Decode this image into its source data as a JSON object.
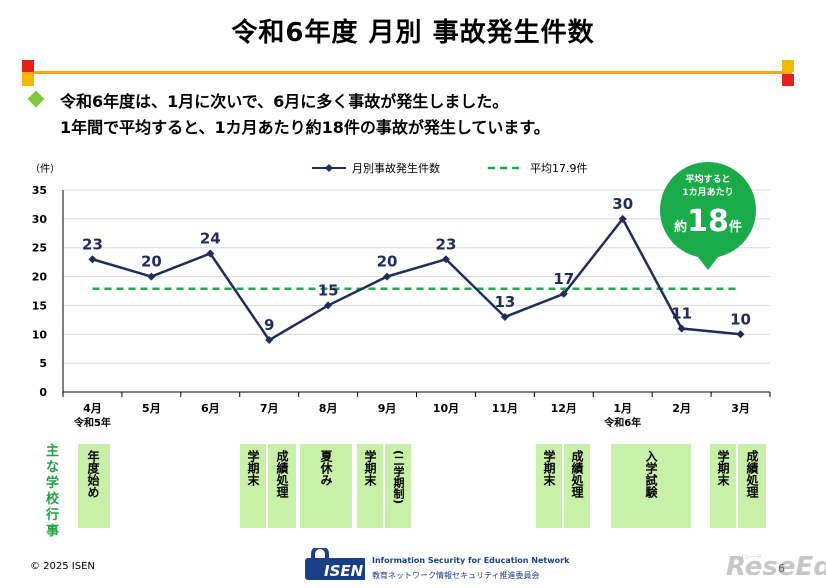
{
  "title": "令和6年度 月別 事故発生件数",
  "intro": {
    "line1": "令和6年度は、1月に次いで、6月に多く事故が発生しました。",
    "line2": "1年間で平均すると、1カ月あたり約18件の事故が発生しています。"
  },
  "chart_data": {
    "type": "line",
    "ylabel": "（件）",
    "ylim": [
      0,
      35
    ],
    "yticks": [
      "0",
      "5",
      "10",
      "15",
      "20",
      "25",
      "30",
      "35"
    ],
    "categories": [
      "4月",
      "5月",
      "6月",
      "7月",
      "8月",
      "9月",
      "10月",
      "11月",
      "12月",
      "1月",
      "2月",
      "3月"
    ],
    "sublabels": {
      "0": "令和5年",
      "9": "令和6年"
    },
    "series": [
      {
        "name": "月別事故発生件数",
        "color": "#1f2d5c",
        "values": [
          23,
          20,
          24,
          9,
          15,
          20,
          23,
          13,
          17,
          30,
          11,
          10
        ]
      },
      {
        "name": "平均17.9件",
        "color": "#1cab4a",
        "style": "dashed",
        "values": [
          17.9,
          17.9,
          17.9,
          17.9,
          17.9,
          17.9,
          17.9,
          17.9,
          17.9,
          17.9,
          17.9,
          17.9
        ]
      }
    ],
    "legend_position": "top",
    "grid": true
  },
  "callout": {
    "line1": "平均すると",
    "line2": "1カ月あたり",
    "prefix": "約",
    "value": "18",
    "suffix": "件"
  },
  "events": {
    "title": "主な学校行事",
    "items": [
      "年度始め",
      "学期末",
      "成績処理",
      "夏休み",
      "学期末",
      "(二学期制)",
      "学期末",
      "成績処理",
      "入学試験",
      "学期末",
      "成績処理"
    ]
  },
  "footer": {
    "copyright": "© 2025 ISEN",
    "logo_brand": "ISEN",
    "logo_line1": "Information Security for Education Network",
    "logo_line2": "教育ネットワーク情報セキュリティ推進委員会",
    "page": "6",
    "watermark": "ReseEd",
    "watermark_sub": "リシード"
  },
  "colors": {
    "line": "#1f2d5c",
    "average": "#1cab4a",
    "accent_bar": "#f5a623",
    "event_box": "#c9f0a8",
    "event_title": "#1fa33f",
    "bullet": "#7ec93a"
  }
}
